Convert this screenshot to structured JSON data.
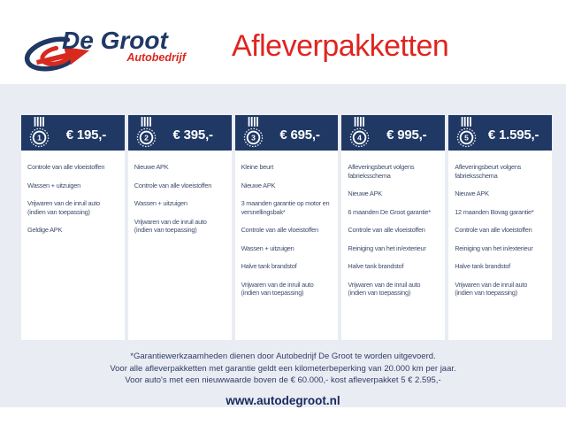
{
  "brand": {
    "name": "De Groot",
    "subtitle": "Autobedrijf"
  },
  "page_title": "Afleverpakketten",
  "colors": {
    "navy": "#1f3864",
    "red": "#e02420",
    "panel_background": "#eaecf3",
    "body_text": "#3f4e6d"
  },
  "packages": [
    {
      "medal_number": "1",
      "price": "€ 195,-",
      "items": [
        "Controle van alle vloeistoffen",
        "Wassen + uitzuigen",
        "Vrijwaren van de inruil auto (indien van toepassing)",
        "Geldige APK"
      ]
    },
    {
      "medal_number": "2",
      "price": "€ 395,-",
      "items": [
        "Nieuwe APK",
        "Controle van alle vloeistoffen",
        "Wassen + uitzuigen",
        "Vrijwaren van de inruil auto (indien van toepassing)"
      ]
    },
    {
      "medal_number": "3",
      "price": "€ 695,-",
      "items": [
        "Kleine beurt",
        "Nieuwe APK",
        "3 maanden garantie op motor en versnellingsbak*",
        "Controle van alle vloeistoffen",
        "Wassen + uitzuigen",
        "Halve tank brandstof",
        "Vrijwaren van de inruil auto (indien van toepassing)"
      ]
    },
    {
      "medal_number": "4",
      "price": "€ 995,-",
      "items": [
        "Afleveringsbeurt volgens fabrieksschema",
        "Nieuwe APK",
        "6 maanden De Groot garantie*",
        "Controle van alle vloeistoffen",
        "Reiniging van het in/exterieur",
        "Halve tank brandstof",
        "Vrijwaren van de inruil auto (indien van toepassing)"
      ]
    },
    {
      "medal_number": "5",
      "price": "€ 1.595,-",
      "items": [
        "Afleveringsbeurt volgens fabrieksschema",
        "Nieuwe APK",
        "12 maanden Bovag garantie*",
        "Controle van alle vloeistoffen",
        "Reiniging van het in/exterieur",
        "Halve tank brandstof",
        "Vrijwaren van de inruil auto (indien van toepassing)"
      ]
    }
  ],
  "footer": {
    "notes": [
      "*Garantiewerkzaamheden dienen door Autobedrijf De Groot te worden uitgevoerd.",
      "Voor alle afleverpakketten met garantie geldt een kilometerbeperking van 20.000 km per jaar.",
      "Voor auto's met een nieuwwaarde boven de € 60.000,- kost afleverpakket 5 € 2.595,-"
    ],
    "website": "www.autodegroot.nl"
  },
  "icons": {
    "medal": "medal-icon",
    "logo": "degroot-swoosh-logo"
  }
}
